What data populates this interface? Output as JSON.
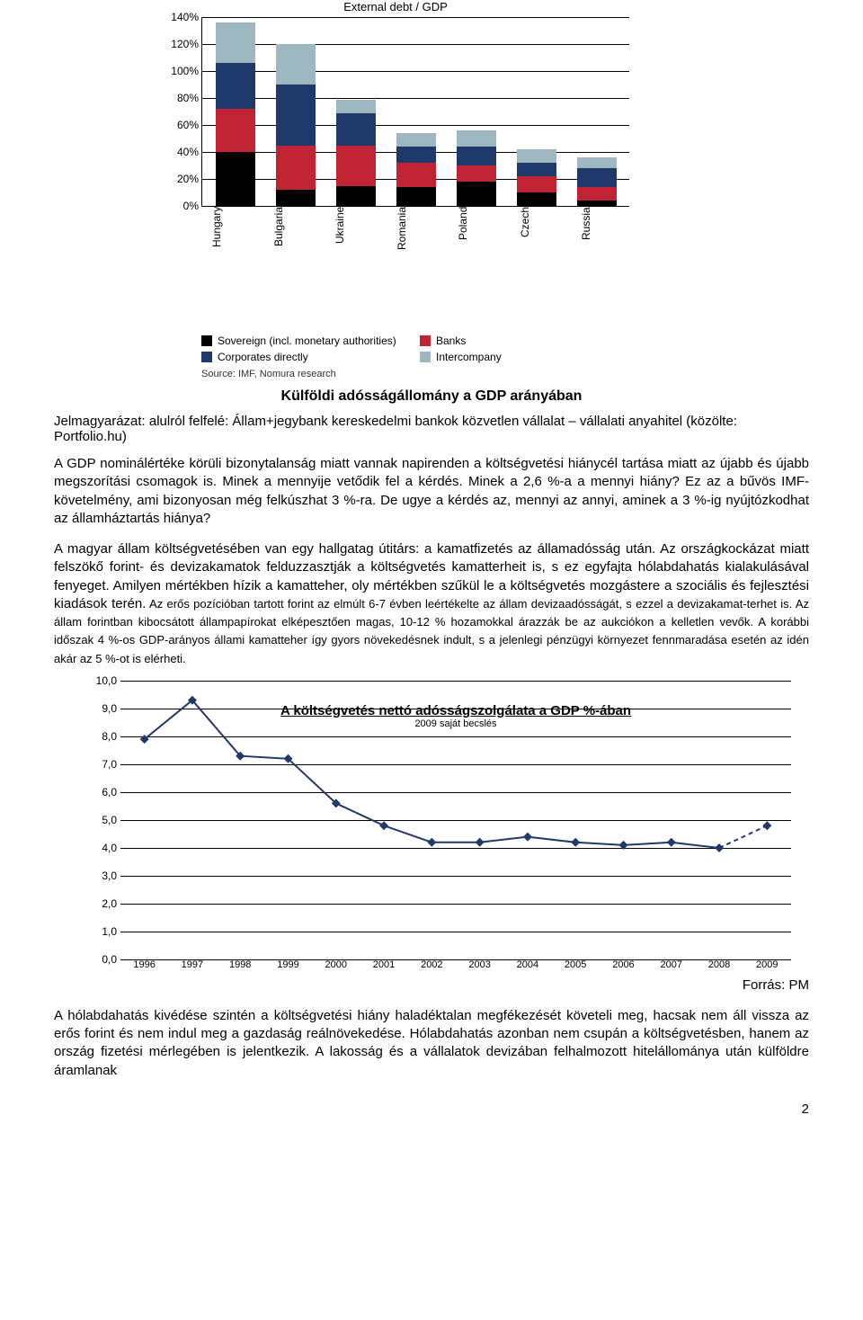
{
  "bar_chart": {
    "title": "External debt / GDP",
    "ymax": 140,
    "ytick_step": 20,
    "categories": [
      "Hungary",
      "Bulgaria",
      "Ukraine",
      "Romania",
      "Poland",
      "Czech",
      "Russia"
    ],
    "series": [
      {
        "name": "Sovereign (incl. monetary authorities)",
        "color": "#000000",
        "values": [
          40,
          12,
          15,
          14,
          18,
          10,
          4
        ]
      },
      {
        "name": "Banks",
        "color": "#c02434",
        "values": [
          32,
          33,
          30,
          18,
          12,
          12,
          10
        ]
      },
      {
        "name": "Corporates directly",
        "color": "#1f3a6a",
        "values": [
          34,
          45,
          24,
          12,
          14,
          10,
          14
        ]
      },
      {
        "name": "Intercompany",
        "color": "#9eb7c0",
        "values": [
          30,
          30,
          10,
          10,
          12,
          10,
          8
        ]
      }
    ],
    "source": "Source: IMF, Nomura research",
    "y_suffix": "%",
    "legend_cols": 2,
    "axis_color": "#000000",
    "font_size": 12
  },
  "caption": "Külföldi adósságállomány a GDP arányában",
  "subcaption_html": "Jelmagyarázat: alulról felfelé: Állam+jegybank kereskedelmi bankok közvetlen vállalat – vállalati anyahitel (közölte: Portfolio.hu)",
  "paragraphs": [
    "A GDP nominálértéke körüli bizonytalanság miatt vannak napirenden a költségvetési hiánycél tartása miatt az újabb és újabb megszorítási csomagok is. Minek a mennyije vetődik fel a kérdés. Minek a 2,6 %-a a mennyi hiány? Ez az a bűvös IMF-követelmény, ami bizonyosan még felkúszhat 3 %-ra. De ugye a kérdés az, mennyi az annyi, aminek a 3 %-ig nyújtózkodhat az államháztartás hiánya?"
  ],
  "para2_large": "A magyar állam költségvetésében van egy hallgatag útitárs: a kamatfizetés az államadósság után. Az országkockázat miatt felszökő forint- és devizakamatok felduzzasztják a költségvetés kamatterheit is, s ez egyfajta hólabdahatás kialakulásával fenyeget. Amilyen mértékben hízik a kamatteher, oly mértékben szűkül le a költségvetés mozgástere a szociális és fejlesztési kiadások terén.",
  "para2_small": " Az erős pozícióban tartott forint az elmúlt 6-7 évben leértékelte az állam devizaadósságát, s ezzel a devizakamat-terhet is. Az állam forintban kibocsátott állampapírokat elképesztően magas, 10-12 % hozamokkal árazzák be az aukciókon a kelletlen vevők. A korábbi időszak 4 %-os GDP-arányos állami kamatteher így gyors növekedésnek indult, s a jelenlegi pénzügyi környezet fennmaradása esetén az idén akár az 5 %-ot is elérheti.",
  "line_chart": {
    "title": "A költségvetés nettó adósságszolgálata  a GDP %-ában",
    "subtitle": "2009 saját becslés",
    "ymax": 10,
    "ytick_step": 1,
    "years": [
      1996,
      1997,
      1998,
      1999,
      2000,
      2001,
      2002,
      2003,
      2004,
      2005,
      2006,
      2007,
      2008,
      2009
    ],
    "values": [
      7.9,
      9.3,
      7.3,
      7.2,
      5.6,
      4.8,
      4.2,
      4.2,
      4.4,
      4.2,
      4.1,
      4.2,
      4.0,
      4.8
    ],
    "line_color": "#1f3a6a",
    "marker_color": "#1f3a6a",
    "marker_size": 5,
    "line_width": 2,
    "grid_color": "#000000",
    "dashed_last": true,
    "font_size": 12,
    "source": "Forrás: PM"
  },
  "para3": "A hólabdahatás kivédése szintén a költségvetési hiány haladéktalan megfékezését követeli meg, hacsak nem áll vissza az erős forint és nem indul meg a gazdaság reálnövekedése. Hólabdahatás azonban nem csupán a költségvetésben, hanem az ország fizetési mérlegében is jelentkezik. A lakosság és a vállalatok devizában felhalmozott hitelállománya után külföldre áramlanak",
  "page_number": "2"
}
